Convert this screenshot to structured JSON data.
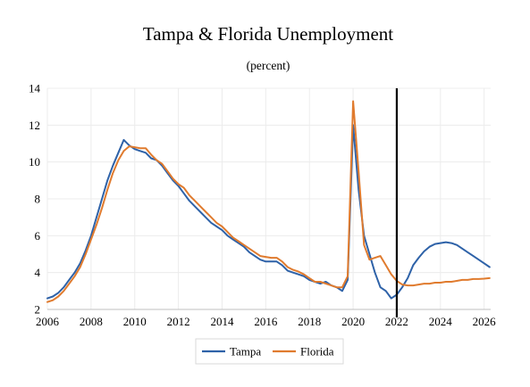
{
  "chart_data": {
    "type": "line",
    "title": "Tampa & Florida Unemployment",
    "subtitle": "(percent)",
    "xlabel": "",
    "ylabel": "",
    "xlim": [
      2006,
      2026.3
    ],
    "ylim": [
      2,
      14
    ],
    "x_ticks": [
      2006,
      2008,
      2010,
      2012,
      2014,
      2016,
      2018,
      2020,
      2022,
      2024,
      2026
    ],
    "y_ticks": [
      2,
      4,
      6,
      8,
      10,
      12,
      14
    ],
    "grid": "both",
    "legend_position": "bottom",
    "vertical_marker": 2022.0,
    "series": [
      {
        "name": "Tampa",
        "color": "#2E62A8",
        "points": [
          [
            2006.0,
            2.6
          ],
          [
            2006.25,
            2.7
          ],
          [
            2006.5,
            2.9
          ],
          [
            2006.75,
            3.2
          ],
          [
            2007.0,
            3.6
          ],
          [
            2007.25,
            4.0
          ],
          [
            2007.5,
            4.5
          ],
          [
            2007.75,
            5.2
          ],
          [
            2008.0,
            6.0
          ],
          [
            2008.25,
            7.0
          ],
          [
            2008.5,
            8.0
          ],
          [
            2008.75,
            9.0
          ],
          [
            2009.0,
            9.8
          ],
          [
            2009.25,
            10.5
          ],
          [
            2009.5,
            11.2
          ],
          [
            2009.75,
            10.9
          ],
          [
            2010.0,
            10.7
          ],
          [
            2010.25,
            10.6
          ],
          [
            2010.5,
            10.5
          ],
          [
            2010.75,
            10.2
          ],
          [
            2011.0,
            10.1
          ],
          [
            2011.25,
            9.8
          ],
          [
            2011.5,
            9.4
          ],
          [
            2011.75,
            9.0
          ],
          [
            2012.0,
            8.7
          ],
          [
            2012.25,
            8.3
          ],
          [
            2012.5,
            7.9
          ],
          [
            2012.75,
            7.6
          ],
          [
            2013.0,
            7.3
          ],
          [
            2013.25,
            7.0
          ],
          [
            2013.5,
            6.7
          ],
          [
            2013.75,
            6.5
          ],
          [
            2014.0,
            6.3
          ],
          [
            2014.25,
            6.0
          ],
          [
            2014.5,
            5.8
          ],
          [
            2014.75,
            5.6
          ],
          [
            2015.0,
            5.4
          ],
          [
            2015.25,
            5.1
          ],
          [
            2015.5,
            4.9
          ],
          [
            2015.75,
            4.7
          ],
          [
            2016.0,
            4.6
          ],
          [
            2016.25,
            4.6
          ],
          [
            2016.5,
            4.6
          ],
          [
            2016.75,
            4.4
          ],
          [
            2017.0,
            4.1
          ],
          [
            2017.25,
            4.0
          ],
          [
            2017.5,
            3.9
          ],
          [
            2017.75,
            3.8
          ],
          [
            2018.0,
            3.6
          ],
          [
            2018.25,
            3.5
          ],
          [
            2018.5,
            3.4
          ],
          [
            2018.75,
            3.5
          ],
          [
            2019.0,
            3.3
          ],
          [
            2019.25,
            3.2
          ],
          [
            2019.5,
            3.0
          ],
          [
            2019.75,
            3.6
          ],
          [
            2020.0,
            12.0
          ],
          [
            2020.25,
            8.5
          ],
          [
            2020.5,
            6.0
          ],
          [
            2020.75,
            5.0
          ],
          [
            2021.0,
            4.0
          ],
          [
            2021.25,
            3.2
          ],
          [
            2021.5,
            3.0
          ],
          [
            2021.75,
            2.6
          ],
          [
            2022.0,
            2.8
          ],
          [
            2022.25,
            3.2
          ],
          [
            2022.5,
            3.7
          ],
          [
            2022.75,
            4.4
          ],
          [
            2023.0,
            4.8
          ],
          [
            2023.25,
            5.15
          ],
          [
            2023.5,
            5.4
          ],
          [
            2023.75,
            5.55
          ],
          [
            2024.0,
            5.6
          ],
          [
            2024.25,
            5.65
          ],
          [
            2024.5,
            5.6
          ],
          [
            2024.75,
            5.5
          ],
          [
            2025.0,
            5.3
          ],
          [
            2025.25,
            5.1
          ],
          [
            2025.5,
            4.9
          ],
          [
            2025.75,
            4.7
          ],
          [
            2026.0,
            4.5
          ],
          [
            2026.25,
            4.3
          ]
        ]
      },
      {
        "name": "Florida",
        "color": "#E07B2E",
        "points": [
          [
            2006.0,
            2.4
          ],
          [
            2006.25,
            2.5
          ],
          [
            2006.5,
            2.7
          ],
          [
            2006.75,
            3.0
          ],
          [
            2007.0,
            3.4
          ],
          [
            2007.25,
            3.8
          ],
          [
            2007.5,
            4.3
          ],
          [
            2007.75,
            5.0
          ],
          [
            2008.0,
            5.8
          ],
          [
            2008.25,
            6.6
          ],
          [
            2008.5,
            7.5
          ],
          [
            2008.75,
            8.5
          ],
          [
            2009.0,
            9.4
          ],
          [
            2009.25,
            10.1
          ],
          [
            2009.5,
            10.6
          ],
          [
            2009.75,
            10.85
          ],
          [
            2010.0,
            10.8
          ],
          [
            2010.25,
            10.75
          ],
          [
            2010.5,
            10.75
          ],
          [
            2010.75,
            10.4
          ],
          [
            2011.0,
            10.1
          ],
          [
            2011.25,
            9.9
          ],
          [
            2011.5,
            9.5
          ],
          [
            2011.75,
            9.1
          ],
          [
            2012.0,
            8.8
          ],
          [
            2012.25,
            8.6
          ],
          [
            2012.5,
            8.2
          ],
          [
            2012.75,
            7.9
          ],
          [
            2013.0,
            7.6
          ],
          [
            2013.25,
            7.3
          ],
          [
            2013.5,
            7.0
          ],
          [
            2013.75,
            6.7
          ],
          [
            2014.0,
            6.5
          ],
          [
            2014.25,
            6.2
          ],
          [
            2014.5,
            5.9
          ],
          [
            2014.75,
            5.7
          ],
          [
            2015.0,
            5.5
          ],
          [
            2015.25,
            5.3
          ],
          [
            2015.5,
            5.1
          ],
          [
            2015.75,
            4.9
          ],
          [
            2016.0,
            4.85
          ],
          [
            2016.25,
            4.8
          ],
          [
            2016.5,
            4.8
          ],
          [
            2016.75,
            4.6
          ],
          [
            2017.0,
            4.3
          ],
          [
            2017.25,
            4.15
          ],
          [
            2017.5,
            4.05
          ],
          [
            2017.75,
            3.9
          ],
          [
            2018.0,
            3.7
          ],
          [
            2018.25,
            3.5
          ],
          [
            2018.5,
            3.5
          ],
          [
            2018.75,
            3.4
          ],
          [
            2019.0,
            3.3
          ],
          [
            2019.25,
            3.2
          ],
          [
            2019.5,
            3.2
          ],
          [
            2019.75,
            3.8
          ],
          [
            2020.0,
            13.3
          ],
          [
            2020.25,
            9.5
          ],
          [
            2020.5,
            5.5
          ],
          [
            2020.75,
            4.7
          ],
          [
            2021.0,
            4.8
          ],
          [
            2021.25,
            4.9
          ],
          [
            2021.5,
            4.4
          ],
          [
            2021.75,
            3.9
          ],
          [
            2022.0,
            3.55
          ],
          [
            2022.25,
            3.35
          ],
          [
            2022.5,
            3.3
          ],
          [
            2022.75,
            3.3
          ],
          [
            2023.0,
            3.35
          ],
          [
            2023.25,
            3.4
          ],
          [
            2023.5,
            3.4
          ],
          [
            2023.75,
            3.45
          ],
          [
            2024.0,
            3.45
          ],
          [
            2024.25,
            3.5
          ],
          [
            2024.5,
            3.5
          ],
          [
            2024.75,
            3.55
          ],
          [
            2025.0,
            3.6
          ],
          [
            2025.25,
            3.6
          ],
          [
            2025.5,
            3.65
          ],
          [
            2025.75,
            3.65
          ],
          [
            2026.0,
            3.67
          ],
          [
            2026.25,
            3.7
          ]
        ]
      }
    ]
  }
}
